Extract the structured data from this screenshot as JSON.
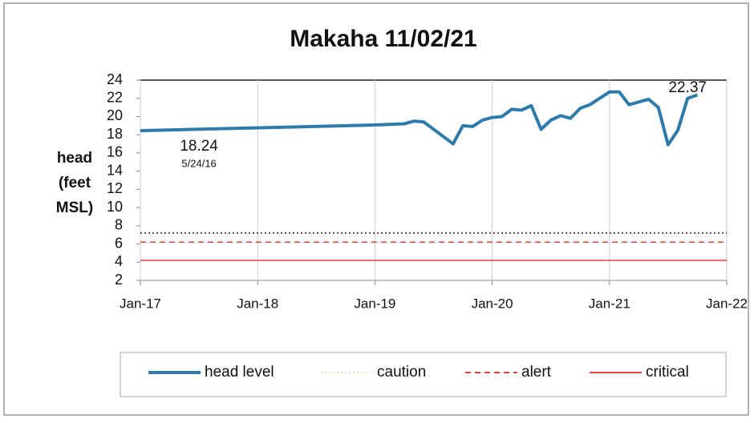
{
  "chart_data": {
    "type": "line",
    "title": "Makaha 11/02/21",
    "y_label": [
      "head",
      "(feet",
      "MSL)"
    ],
    "xlim": [
      "2017-01",
      "2022-01"
    ],
    "xticks": [
      {
        "value": "2017-01",
        "label": "Jan-17"
      },
      {
        "value": "2018-01",
        "label": "Jan-18"
      },
      {
        "value": "2019-01",
        "label": "Jan-19"
      },
      {
        "value": "2020-01",
        "label": "Jan-20"
      },
      {
        "value": "2021-01",
        "label": "Jan-21"
      },
      {
        "value": "2022-01",
        "label": "Jan-22"
      }
    ],
    "ylim": [
      2,
      24
    ],
    "yticks": [
      2,
      4,
      6,
      8,
      10,
      12,
      14,
      16,
      18,
      20,
      22,
      24
    ],
    "grid": true,
    "series": [
      {
        "name": "head level",
        "color": "#2e7bab",
        "x": [
          "2017-01",
          "2019-01",
          "2019-04",
          "2019-05",
          "2019-06",
          "2019-08",
          "2019-09",
          "2019-10",
          "2019-11",
          "2019-12",
          "2020-01",
          "2020-02",
          "2020-03",
          "2020-04",
          "2020-05",
          "2020-06",
          "2020-07",
          "2020-08",
          "2020-09",
          "2020-10",
          "2020-11",
          "2020-12",
          "2021-01",
          "2021-02",
          "2021-03",
          "2021-04",
          "2021-05",
          "2021-06",
          "2021-07",
          "2021-08",
          "2021-09",
          "2021-10"
        ],
        "values": [
          18.45,
          19.07,
          19.2,
          19.5,
          19.4,
          17.8,
          17.0,
          19.0,
          18.9,
          19.6,
          19.9,
          20.0,
          20.8,
          20.7,
          21.2,
          18.6,
          19.6,
          20.1,
          19.8,
          20.9,
          21.3,
          22.0,
          22.7,
          22.7,
          21.3,
          21.6,
          21.9,
          21.0,
          16.9,
          18.5,
          22.0,
          22.37
        ]
      }
    ],
    "thresholds": [
      {
        "name": "caution",
        "color": "#222222",
        "legend_color": "#e6e2c8",
        "style": "dotted",
        "value": 7.2
      },
      {
        "name": "alert",
        "color": "#e0433b",
        "style": "dashed",
        "value": 6.2
      },
      {
        "name": "critical",
        "color": "#e0433b",
        "style": "solid",
        "value": 4.2
      }
    ],
    "annotations": [
      {
        "text": "18.24",
        "sub": "5/24/16",
        "x": "2017-07"
      },
      {
        "text": "22.37",
        "x": "2021-09"
      }
    ]
  }
}
